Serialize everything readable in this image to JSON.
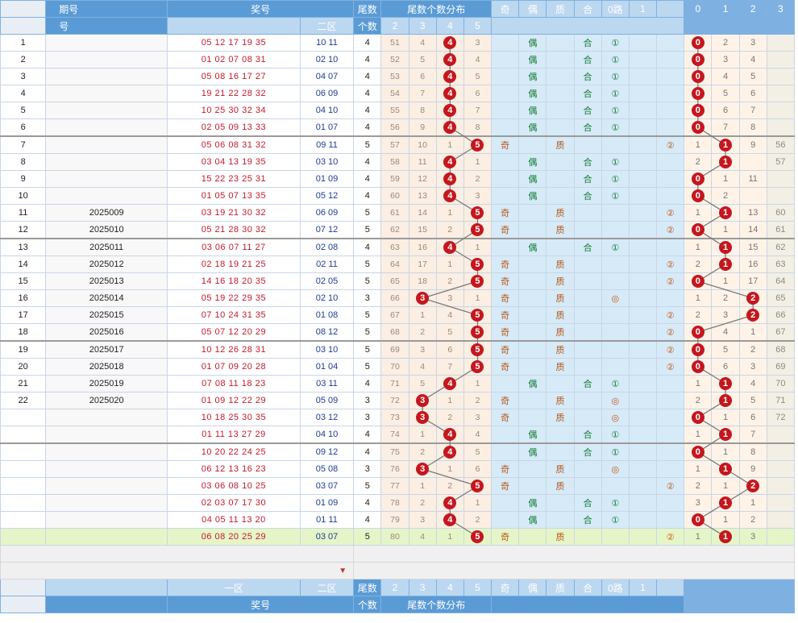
{
  "header": {
    "top": {
      "issue": "期号",
      "prize": "奖号",
      "tail_count": "尾数",
      "tail_dist": "尾数个数分布",
      "parity_odd": "奇",
      "parity_even": "偶",
      "prime": "质",
      "composite": "合",
      "route0": "0路",
      "route1": "1",
      "r0": "0",
      "r1": "1",
      "r2": "2",
      "r3": "3"
    },
    "second": {
      "issue": "号",
      "zone2": "二区",
      "tail_count": "个数",
      "d2": "2",
      "d3": "3",
      "d4": "4",
      "d5": "5"
    }
  },
  "rows": [
    {
      "idx": "1",
      "issue": "",
      "z1": "05 12 17 19 35",
      "z2": "10 11",
      "cnt": "4",
      "c2": "51",
      "c3": "4",
      "c4": "4",
      "c5": "3",
      "odd": "",
      "even": "偶",
      "prime": "",
      "comp": "合",
      "o1": "①",
      "o2": "",
      "r0": "0",
      "r1": "2",
      "r2": "3",
      "r3": "",
      "hit": "4",
      "rhit": 0
    },
    {
      "idx": "2",
      "issue": "",
      "z1": "01 02 07 08 31",
      "z2": "02 10",
      "cnt": "4",
      "c2": "52",
      "c3": "5",
      "c4": "4",
      "c5": "4",
      "odd": "",
      "even": "偶",
      "prime": "",
      "comp": "合",
      "o1": "①",
      "o2": "",
      "r0": "0",
      "r1": "3",
      "r2": "4",
      "r3": "",
      "hit": "4",
      "rhit": 0
    },
    {
      "idx": "3",
      "issue": "",
      "z1": "05 08 16 17 27",
      "z2": "04 07",
      "cnt": "4",
      "c2": "53",
      "c3": "6",
      "c4": "4",
      "c5": "5",
      "odd": "",
      "even": "偶",
      "prime": "",
      "comp": "合",
      "o1": "①",
      "o2": "",
      "r0": "0",
      "r1": "4",
      "r2": "5",
      "r3": "",
      "hit": "4",
      "rhit": 0
    },
    {
      "idx": "4",
      "issue": "",
      "z1": "19 21 22 28 32",
      "z2": "06 09",
      "cnt": "4",
      "c2": "54",
      "c3": "7",
      "c4": "4",
      "c5": "6",
      "odd": "",
      "even": "偶",
      "prime": "",
      "comp": "合",
      "o1": "①",
      "o2": "",
      "r0": "0",
      "r1": "5",
      "r2": "6",
      "r3": "",
      "hit": "4",
      "rhit": 0
    },
    {
      "idx": "5",
      "issue": "",
      "z1": "10 25 30 32 34",
      "z2": "04 10",
      "cnt": "4",
      "c2": "55",
      "c3": "8",
      "c4": "4",
      "c5": "7",
      "odd": "",
      "even": "偶",
      "prime": "",
      "comp": "合",
      "o1": "①",
      "o2": "",
      "r0": "0",
      "r1": "6",
      "r2": "7",
      "r3": "",
      "hit": "4",
      "rhit": 0
    },
    {
      "idx": "6",
      "issue": "",
      "z1": "02 05 09 13 33",
      "z2": "01 07",
      "cnt": "4",
      "c2": "56",
      "c3": "9",
      "c4": "4",
      "c5": "8",
      "odd": "",
      "even": "偶",
      "prime": "",
      "comp": "合",
      "o1": "①",
      "o2": "",
      "r0": "0",
      "r1": "7",
      "r2": "8",
      "r3": "",
      "hit": "4",
      "rhit": 0
    },
    {
      "idx": "7",
      "issue": "",
      "z1": "05 06 08 31 32",
      "z2": "09 11",
      "cnt": "5",
      "c2": "57",
      "c3": "10",
      "c4": "1",
      "c5": "5",
      "odd": "奇",
      "even": "",
      "prime": "质",
      "comp": "",
      "o1": "",
      "o2": "②",
      "r0": "1",
      "r1": "1",
      "r2": "9",
      "r3": "56",
      "hit": "5",
      "rhit": 1
    },
    {
      "idx": "8",
      "issue": "",
      "z1": "03 04 13 19 35",
      "z2": "03 10",
      "cnt": "4",
      "c2": "58",
      "c3": "11",
      "c4": "4",
      "c5": "1",
      "odd": "",
      "even": "偶",
      "prime": "",
      "comp": "合",
      "o1": "①",
      "o2": "",
      "r0": "2",
      "r1": "1",
      "r2": "",
      "r3": "57",
      "hit": "4",
      "rhit": 1
    },
    {
      "idx": "9",
      "issue": "",
      "z1": "15 22 23 25 31",
      "z2": "01 09",
      "cnt": "4",
      "c2": "59",
      "c3": "12",
      "c4": "4",
      "c5": "2",
      "odd": "",
      "even": "偶",
      "prime": "",
      "comp": "合",
      "o1": "①",
      "o2": "",
      "r0": "0",
      "r1": "1",
      "r2": "11",
      "r3": "",
      "hit": "4",
      "rhit": 0
    },
    {
      "idx": "10",
      "issue": "",
      "z1": "01 05 07 13 35",
      "z2": "05 12",
      "cnt": "4",
      "c2": "60",
      "c3": "13",
      "c4": "4",
      "c5": "3",
      "odd": "",
      "even": "偶",
      "prime": "",
      "comp": "合",
      "o1": "①",
      "o2": "",
      "r0": "0",
      "r1": "2",
      "r2": "",
      "r3": "",
      "hit": "4",
      "rhit": 0
    },
    {
      "idx": "11",
      "issue": "2025009",
      "z1": "03 19 21 30 32",
      "z2": "06 09",
      "cnt": "5",
      "c2": "61",
      "c3": "14",
      "c4": "1",
      "c5": "5",
      "odd": "奇",
      "even": "",
      "prime": "质",
      "comp": "",
      "o1": "",
      "o2": "②",
      "r0": "1",
      "r1": "1",
      "r2": "13",
      "r3": "60",
      "hit": "5",
      "rhit": 1
    },
    {
      "idx": "12",
      "issue": "2025010",
      "z1": "05 21 28 30 32",
      "z2": "07 12",
      "cnt": "5",
      "c2": "62",
      "c3": "15",
      "c4": "2",
      "c5": "5",
      "odd": "奇",
      "even": "",
      "prime": "质",
      "comp": "",
      "o1": "",
      "o2": "②",
      "r0": "0",
      "r1": "1",
      "r2": "14",
      "r3": "61",
      "hit": "5",
      "rhit": 0
    },
    {
      "idx": "13",
      "issue": "2025011",
      "z1": "03 06 07 11 27",
      "z2": "02 08",
      "cnt": "4",
      "c2": "63",
      "c3": "16",
      "c4": "4",
      "c5": "1",
      "odd": "",
      "even": "偶",
      "prime": "",
      "comp": "合",
      "o1": "①",
      "o2": "",
      "r0": "1",
      "r1": "1",
      "r2": "15",
      "r3": "62",
      "hit": "4",
      "rhit": 1
    },
    {
      "idx": "14",
      "issue": "2025012",
      "z1": "02 18 19 21 25",
      "z2": "02 11",
      "cnt": "5",
      "c2": "64",
      "c3": "17",
      "c4": "1",
      "c5": "5",
      "odd": "奇",
      "even": "",
      "prime": "质",
      "comp": "",
      "o1": "",
      "o2": "②",
      "r0": "2",
      "r1": "1",
      "r2": "16",
      "r3": "63",
      "hit": "5",
      "rhit": 1
    },
    {
      "idx": "15",
      "issue": "2025013",
      "z1": "14 16 18 20 35",
      "z2": "02 05",
      "cnt": "5",
      "c2": "65",
      "c3": "18",
      "c4": "2",
      "c5": "5",
      "odd": "奇",
      "even": "",
      "prime": "质",
      "comp": "",
      "o1": "",
      "o2": "②",
      "r0": "0",
      "r1": "1",
      "r2": "17",
      "r3": "64",
      "hit": "5",
      "rhit": 0
    },
    {
      "idx": "16",
      "issue": "2025014",
      "z1": "05 19 22 29 35",
      "z2": "02 10",
      "cnt": "3",
      "c2": "66",
      "c3": "3",
      "c4": "3",
      "c5": "1",
      "odd": "奇",
      "even": "",
      "prime": "质",
      "comp": "",
      "o1": "◎",
      "o2": "",
      "r0": "1",
      "r1": "2",
      "r2": "2",
      "r3": "65",
      "hit": "3",
      "rhit": 2
    },
    {
      "idx": "17",
      "issue": "2025015",
      "z1": "07 10 24 31 35",
      "z2": "01 08",
      "cnt": "5",
      "c2": "67",
      "c3": "1",
      "c4": "4",
      "c5": "5",
      "odd": "奇",
      "even": "",
      "prime": "质",
      "comp": "",
      "o1": "",
      "o2": "②",
      "r0": "2",
      "r1": "3",
      "r2": "2",
      "r3": "66",
      "hit": "5",
      "rhit": 2
    },
    {
      "idx": "18",
      "issue": "2025016",
      "z1": "05 07 12 20 29",
      "z2": "08 12",
      "cnt": "5",
      "c2": "68",
      "c3": "2",
      "c4": "5",
      "c5": "5",
      "odd": "奇",
      "even": "",
      "prime": "质",
      "comp": "",
      "o1": "",
      "o2": "②",
      "r0": "0",
      "r1": "4",
      "r2": "1",
      "r3": "67",
      "hit": "5",
      "rhit": 0
    },
    {
      "idx": "19",
      "issue": "2025017",
      "z1": "10 12 26 28 31",
      "z2": "03 10",
      "cnt": "5",
      "c2": "69",
      "c3": "3",
      "c4": "6",
      "c5": "5",
      "odd": "奇",
      "even": "",
      "prime": "质",
      "comp": "",
      "o1": "",
      "o2": "②",
      "r0": "0",
      "r1": "5",
      "r2": "2",
      "r3": "68",
      "hit": "5",
      "rhit": 0
    },
    {
      "idx": "20",
      "issue": "2025018",
      "z1": "01 07 09 20 28",
      "z2": "01 04",
      "cnt": "5",
      "c2": "70",
      "c3": "4",
      "c4": "7",
      "c5": "5",
      "odd": "奇",
      "even": "",
      "prime": "质",
      "comp": "",
      "o1": "",
      "o2": "②",
      "r0": "0",
      "r1": "6",
      "r2": "3",
      "r3": "69",
      "hit": "5",
      "rhit": 0
    },
    {
      "idx": "21",
      "issue": "2025019",
      "z1": "07 08 11 18 23",
      "z2": "03 11",
      "cnt": "4",
      "c2": "71",
      "c3": "5",
      "c4": "4",
      "c5": "1",
      "odd": "",
      "even": "偶",
      "prime": "",
      "comp": "合",
      "o1": "①",
      "o2": "",
      "r0": "1",
      "r1": "1",
      "r2": "4",
      "r3": "70",
      "hit": "4",
      "rhit": 1
    },
    {
      "idx": "22",
      "issue": "2025020",
      "z1": "01 09 12 22 29",
      "z2": "05 09",
      "cnt": "3",
      "c2": "72",
      "c3": "3",
      "c4": "1",
      "c5": "2",
      "odd": "奇",
      "even": "",
      "prime": "质",
      "comp": "",
      "o1": "◎",
      "o2": "",
      "r0": "2",
      "r1": "1",
      "r2": "5",
      "r3": "71",
      "hit": "3",
      "rhit": 1
    },
    {
      "idx": "",
      "issue": "",
      "z1": "10 18 25 30 35",
      "z2": "03 12",
      "cnt": "3",
      "c2": "73",
      "c3": "3",
      "c4": "2",
      "c5": "3",
      "odd": "奇",
      "even": "",
      "prime": "质",
      "comp": "",
      "o1": "◎",
      "o2": "",
      "r0": "0",
      "r1": "1",
      "r2": "6",
      "r3": "72",
      "hit": "3",
      "rhit": 0
    },
    {
      "idx": "",
      "issue": "",
      "z1": "01 11 13 27 29",
      "z2": "04 10",
      "cnt": "4",
      "c2": "74",
      "c3": "1",
      "c4": "4",
      "c5": "4",
      "odd": "",
      "even": "偶",
      "prime": "",
      "comp": "合",
      "o1": "①",
      "o2": "",
      "r0": "1",
      "r1": "1",
      "r2": "7",
      "r3": "",
      "hit": "4",
      "rhit": 1
    },
    {
      "idx": "",
      "issue": "",
      "z1": "10 20 22 24 25",
      "z2": "09 12",
      "cnt": "4",
      "c2": "75",
      "c3": "2",
      "c4": "4",
      "c5": "5",
      "odd": "",
      "even": "偶",
      "prime": "",
      "comp": "合",
      "o1": "①",
      "o2": "",
      "r0": "0",
      "r1": "1",
      "r2": "8",
      "r3": "",
      "hit": "4",
      "rhit": 0
    },
    {
      "idx": "",
      "issue": "",
      "z1": "06 12 13 16 23",
      "z2": "05 08",
      "cnt": "3",
      "c2": "76",
      "c3": "3",
      "c4": "1",
      "c5": "6",
      "odd": "奇",
      "even": "",
      "prime": "质",
      "comp": "",
      "o1": "◎",
      "o2": "",
      "r0": "1",
      "r1": "1",
      "r2": "9",
      "r3": "",
      "hit": "3",
      "rhit": 1
    },
    {
      "idx": "",
      "issue": "",
      "z1": "03 06 08 10 25",
      "z2": "03 07",
      "cnt": "5",
      "c2": "77",
      "c3": "1",
      "c4": "2",
      "c5": "5",
      "odd": "奇",
      "even": "",
      "prime": "质",
      "comp": "",
      "o1": "",
      "o2": "②",
      "r0": "2",
      "r1": "1",
      "r2": "2",
      "r3": "",
      "hit": "5",
      "rhit": 2
    },
    {
      "idx": "",
      "issue": "",
      "z1": "02 03 07 17 30",
      "z2": "01 09",
      "cnt": "4",
      "c2": "78",
      "c3": "2",
      "c4": "4",
      "c5": "1",
      "odd": "",
      "even": "偶",
      "prime": "",
      "comp": "合",
      "o1": "①",
      "o2": "",
      "r0": "3",
      "r1": "1",
      "r2": "1",
      "r3": "",
      "hit": "4",
      "rhit": 1
    },
    {
      "idx": "",
      "issue": "",
      "z1": "04 05 11 13 20",
      "z2": "01 11",
      "cnt": "4",
      "c2": "79",
      "c3": "3",
      "c4": "4",
      "c5": "2",
      "odd": "",
      "even": "偶",
      "prime": "",
      "comp": "合",
      "o1": "①",
      "o2": "",
      "r0": "0",
      "r1": "1",
      "r2": "2",
      "r3": "",
      "hit": "4",
      "rhit": 0
    },
    {
      "idx": "",
      "issue": "",
      "z1": "06 08 20 25 29",
      "z2": "03 07",
      "cnt": "5",
      "c2": "80",
      "c3": "4",
      "c4": "1",
      "c5": "5",
      "odd": "奇",
      "even": "",
      "prime": "质",
      "comp": "",
      "o1": "",
      "o2": "②",
      "r0": "1",
      "r1": "1",
      "r2": "3",
      "r3": "",
      "hit": "5",
      "rhit": 1
    }
  ],
  "footer": {
    "zone1": "一区",
    "zone2": "二区",
    "prize": "奖号",
    "tail_count_a": "尾数",
    "tail_count_b": "个数",
    "tail_dist": "尾数个数分布",
    "d2": "2",
    "d3": "3",
    "d4": "4",
    "d5": "5",
    "odd": "奇",
    "even": "偶",
    "prime": "质",
    "comp": "合",
    "route": "0路",
    "one": "1"
  }
}
